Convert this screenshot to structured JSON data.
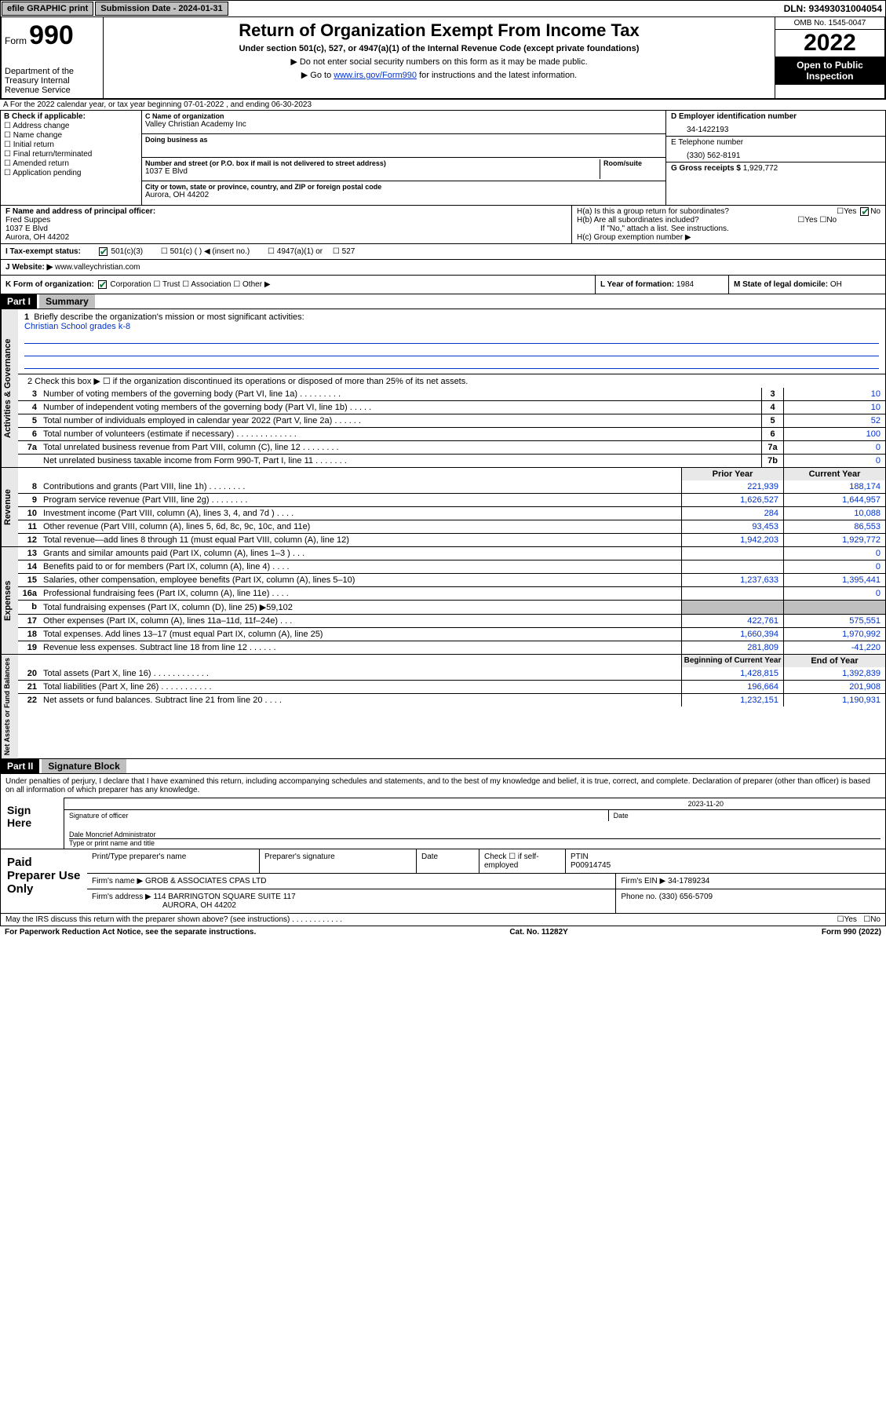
{
  "topbar": {
    "efile": "efile GRAPHIC print",
    "sub_label": "Submission Date - 2024-01-31",
    "dln": "DLN: 93493031004054"
  },
  "header": {
    "form": "Form",
    "num": "990",
    "dept": "Department of the Treasury Internal Revenue Service",
    "title": "Return of Organization Exempt From Income Tax",
    "sub": "Under section 501(c), 527, or 4947(a)(1) of the Internal Revenue Code (except private foundations)",
    "note1": "▶ Do not enter social security numbers on this form as it may be made public.",
    "note2_pre": "▶ Go to ",
    "note2_link": "www.irs.gov/Form990",
    "note2_post": " for instructions and the latest information.",
    "omb": "OMB No. 1545-0047",
    "year": "2022",
    "open": "Open to Public Inspection"
  },
  "lineA": "A For the 2022 calendar year, or tax year beginning 07-01-2022    , and ending 06-30-2023",
  "colB": {
    "hdr": "B Check if applicable:",
    "opts": [
      "Address change",
      "Name change",
      "Initial return",
      "Final return/terminated",
      "Amended return",
      "Application pending"
    ]
  },
  "colC": {
    "name_lbl": "C Name of organization",
    "name": "Valley Christian Academy Inc",
    "dba_lbl": "Doing business as",
    "addr_lbl": "Number and street (or P.O. box if mail is not delivered to street address)",
    "room_lbl": "Room/suite",
    "addr": "1037 E Blvd",
    "city_lbl": "City or town, state or province, country, and ZIP or foreign postal code",
    "city": "Aurora, OH  44202"
  },
  "colD": {
    "ein_lbl": "D Employer identification number",
    "ein": "34-1422193",
    "tel_lbl": "E Telephone number",
    "tel": "(330) 562-8191",
    "gross_lbl": "G Gross receipts $",
    "gross": "1,929,772"
  },
  "rowF": {
    "lbl": "F Name and address of principal officer:",
    "name": "Fred Suppes",
    "addr1": "1037 E Blvd",
    "addr2": "Aurora, OH  44202"
  },
  "rowH": {
    "ha": "H(a)  Is this a group return for subordinates?",
    "hb": "H(b)  Are all subordinates included?",
    "hb_note": "If \"No,\" attach a list. See instructions.",
    "hc": "H(c)  Group exemption number ▶",
    "yes": "Yes",
    "no": "No"
  },
  "rowI": {
    "lbl": "I    Tax-exempt status:",
    "opts": [
      "501(c)(3)",
      "501(c) (  ) ◀ (insert no.)",
      "4947(a)(1) or",
      "527"
    ]
  },
  "rowJ": {
    "lbl": "J   Website: ▶",
    "val": "www.valleychristian.com"
  },
  "rowK": {
    "lbl": "K Form of organization:",
    "opts": [
      "Corporation",
      "Trust",
      "Association",
      "Other ▶"
    ]
  },
  "rowL": {
    "lbl": "L Year of formation:",
    "val": "1984"
  },
  "rowM": {
    "lbl": "M State of legal domicile:",
    "val": "OH"
  },
  "part1": {
    "tag": "Part I",
    "title": "Summary"
  },
  "mission": {
    "num": "1",
    "lbl": "Briefly describe the organization's mission or most significant activities:",
    "val": "Christian School grades k-8"
  },
  "line2": "2   Check this box ▶ ☐  if the organization discontinued its operations or disposed of more than 25% of its net assets.",
  "vlabels": {
    "gov": "Activities & Governance",
    "rev": "Revenue",
    "exp": "Expenses",
    "net": "Net Assets or Fund Balances"
  },
  "gov_rows": [
    {
      "n": "3",
      "d": "Number of voting members of the governing body (Part VI, line 1a)   .   .   .   .   .   .   .   .   .",
      "b": "3",
      "v": "10"
    },
    {
      "n": "4",
      "d": "Number of independent voting members of the governing body (Part VI, line 1b)   .   .   .   .   .",
      "b": "4",
      "v": "10"
    },
    {
      "n": "5",
      "d": "Total number of individuals employed in calendar year 2022 (Part V, line 2a)   .   .   .   .   .   .",
      "b": "5",
      "v": "52"
    },
    {
      "n": "6",
      "d": "Total number of volunteers (estimate if necessary)   .   .   .   .   .   .   .   .   .   .   .   .   .",
      "b": "6",
      "v": "100"
    },
    {
      "n": "7a",
      "d": "Total unrelated business revenue from Part VIII, column (C), line 12   .   .   .   .   .   .   .   .",
      "b": "7a",
      "v": "0"
    },
    {
      "n": "",
      "d": "Net unrelated business taxable income from Form 990-T, Part I, line 11   .   .   .   .   .   .   .",
      "b": "7b",
      "v": "0"
    }
  ],
  "rev_hdr": {
    "py": "Prior Year",
    "cy": "Current Year"
  },
  "rev_rows": [
    {
      "n": "8",
      "d": "Contributions and grants (Part VIII, line 1h)   .   .   .   .   .   .   .   .",
      "py": "221,939",
      "cy": "188,174"
    },
    {
      "n": "9",
      "d": "Program service revenue (Part VIII, line 2g)   .   .   .   .   .   .   .   .",
      "py": "1,626,527",
      "cy": "1,644,957"
    },
    {
      "n": "10",
      "d": "Investment income (Part VIII, column (A), lines 3, 4, and 7d )   .   .   .   .",
      "py": "284",
      "cy": "10,088"
    },
    {
      "n": "11",
      "d": "Other revenue (Part VIII, column (A), lines 5, 6d, 8c, 9c, 10c, and 11e)",
      "py": "93,453",
      "cy": "86,553"
    },
    {
      "n": "12",
      "d": "Total revenue—add lines 8 through 11 (must equal Part VIII, column (A), line 12)",
      "py": "1,942,203",
      "cy": "1,929,772"
    }
  ],
  "exp_rows": [
    {
      "n": "13",
      "d": "Grants and similar amounts paid (Part IX, column (A), lines 1–3 )   .   .   .",
      "py": "",
      "cy": "0"
    },
    {
      "n": "14",
      "d": "Benefits paid to or for members (Part IX, column (A), line 4)   .   .   .   .",
      "py": "",
      "cy": "0"
    },
    {
      "n": "15",
      "d": "Salaries, other compensation, employee benefits (Part IX, column (A), lines 5–10)",
      "py": "1,237,633",
      "cy": "1,395,441"
    },
    {
      "n": "16a",
      "d": "Professional fundraising fees (Part IX, column (A), line 11e)   .   .   .   .",
      "py": "",
      "cy": "0"
    },
    {
      "n": "b",
      "d": "Total fundraising expenses (Part IX, column (D), line 25) ▶59,102",
      "py": "grey",
      "cy": "grey"
    },
    {
      "n": "17",
      "d": "Other expenses (Part IX, column (A), lines 11a–11d, 11f–24e)   .   .   .",
      "py": "422,761",
      "cy": "575,551"
    },
    {
      "n": "18",
      "d": "Total expenses. Add lines 13–17 (must equal Part IX, column (A), line 25)",
      "py": "1,660,394",
      "cy": "1,970,992"
    },
    {
      "n": "19",
      "d": "Revenue less expenses. Subtract line 18 from line 12   .   .   .   .   .   .",
      "py": "281,809",
      "cy": "-41,220"
    }
  ],
  "net_hdr": {
    "py": "Beginning of Current Year",
    "cy": "End of Year"
  },
  "net_rows": [
    {
      "n": "20",
      "d": "Total assets (Part X, line 16)   .   .   .   .   .   .   .   .   .   .   .   .",
      "py": "1,428,815",
      "cy": "1,392,839"
    },
    {
      "n": "21",
      "d": "Total liabilities (Part X, line 26)   .   .   .   .   .   .   .   .   .   .   .",
      "py": "196,664",
      "cy": "201,908"
    },
    {
      "n": "22",
      "d": "Net assets or fund balances. Subtract line 21 from line 20   .   .   .   .",
      "py": "1,232,151",
      "cy": "1,190,931"
    }
  ],
  "part2": {
    "tag": "Part II",
    "title": "Signature Block"
  },
  "sig": {
    "decl": "Under penalties of perjury, I declare that I have examined this return, including accompanying schedules and statements, and to the best of my knowledge and belief, it is true, correct, and complete. Declaration of preparer (other than officer) is based on all information of which preparer has any knowledge.",
    "sign_here": "Sign Here",
    "sig_officer": "Signature of officer",
    "date_lbl": "Date",
    "date": "2023-11-20",
    "name": "Dale Moncrief Administrator",
    "name_lbl": "Type or print name and title"
  },
  "prep": {
    "title": "Paid Preparer Use Only",
    "h1": "Print/Type preparer's name",
    "h2": "Preparer's signature",
    "h3": "Date",
    "h4_lbl": "Check ☐ if self-employed",
    "h5_lbl": "PTIN",
    "h5": "P00914745",
    "firm_lbl": "Firm's name    ▶",
    "firm": "GROB & ASSOCIATES CPAS LTD",
    "ein_lbl": "Firm's EIN ▶",
    "ein": "34-1789234",
    "addr_lbl": "Firm's address ▶",
    "addr1": "114 BARRINGTON SQUARE SUITE 117",
    "addr2": "AURORA, OH  44202",
    "phone_lbl": "Phone no.",
    "phone": "(330) 656-5709"
  },
  "footer": {
    "q": "May the IRS discuss this return with the preparer shown above? (see instructions)   .   .   .   .   .   .   .   .   .   .   .   .",
    "yes": "Yes",
    "no": "No",
    "pra": "For Paperwork Reduction Act Notice, see the separate instructions.",
    "cat": "Cat. No. 11282Y",
    "form": "Form 990 (2022)"
  }
}
